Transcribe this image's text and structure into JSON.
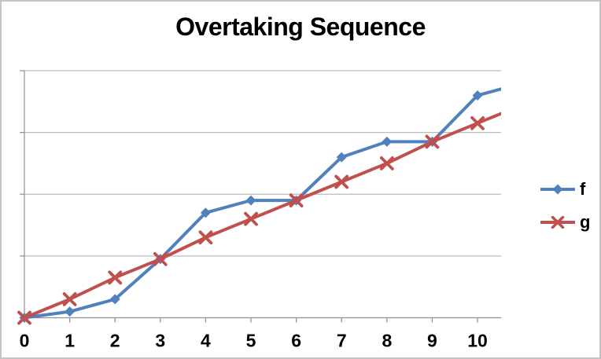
{
  "frame": {
    "background": "#FFFFFF",
    "border_color": "#C4C4C4"
  },
  "chart_data": {
    "type": "line",
    "title": "Overtaking Sequence",
    "x": [
      0,
      1,
      2,
      3,
      4,
      5,
      6,
      7,
      8,
      9,
      10
    ],
    "x_tick_labels": [
      "0",
      "1",
      "2",
      "3",
      "4",
      "5",
      "6",
      "7",
      "8",
      "9",
      "10"
    ],
    "x_axis": {
      "min": 0,
      "max": 10.52,
      "tick_step": 1,
      "labels_visible": true
    },
    "y_axis": {
      "min": 0,
      "max": 40,
      "gridline_step": 10,
      "tick_labels_visible": false
    },
    "grid": "horizontal",
    "series": [
      {
        "name": "f",
        "color": "#4F81BD",
        "marker": "diamond",
        "line_width": 4,
        "values": [
          0,
          1,
          3,
          9.5,
          17,
          19,
          19,
          26,
          28.5,
          28.5,
          36
        ],
        "clipped_next_value": 38
      },
      {
        "name": "g",
        "color": "#C0504D",
        "marker": "x",
        "line_width": 4,
        "values": [
          0,
          3,
          6.5,
          9.5,
          13,
          16,
          19,
          22,
          25,
          28.5,
          31.5
        ],
        "clipped_next_value": 34.5
      }
    ],
    "crossings_at_x": [
      0,
      3,
      6,
      9
    ],
    "legend": {
      "position": "right",
      "entries": [
        "f",
        "g"
      ]
    },
    "colors": {
      "grid": "#BBBBBB",
      "axis": "#8F8F8F",
      "text": "#000000"
    }
  }
}
